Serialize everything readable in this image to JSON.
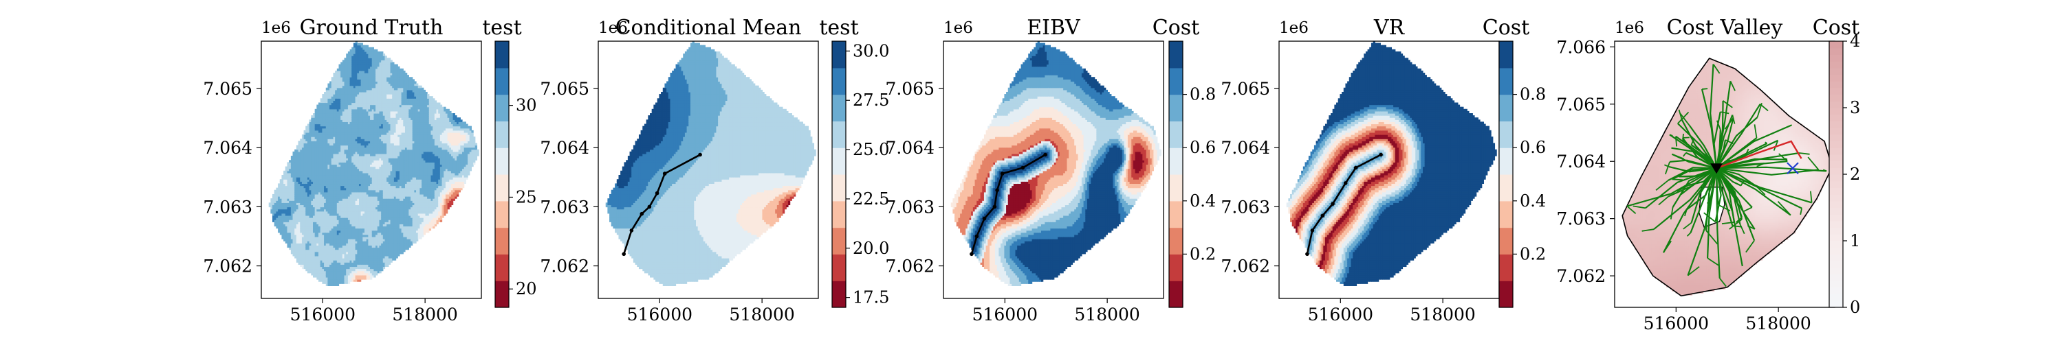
{
  "figure": {
    "colormap": [
      "#67001f",
      "#b2182b",
      "#d6604d",
      "#f4a582",
      "#fddbc7",
      "#f7f7f7",
      "#d1e5f0",
      "#92c5de",
      "#4393c3",
      "#2166ac",
      "#053061"
    ],
    "valley_cmap": [
      "#f4f6fa",
      "#f7ecec",
      "#f1d6d6",
      "#e7bcbc",
      "#d9a0a2"
    ],
    "path_color": "#000000",
    "tree_color": "#118011",
    "best_path_color": "#d62728",
    "target_color": "#1f3fcf",
    "land_color": "#888888"
  },
  "chart_data": [
    {
      "type": "heatmap",
      "title": "Ground Truth",
      "offset_label": "1e6",
      "x_ticks": [
        "516000",
        "518000"
      ],
      "y_ticks": [
        "7.065",
        "7.064",
        "7.063",
        "7.062"
      ],
      "x_range": [
        514800,
        519100
      ],
      "y_range": [
        7061450,
        7065800
      ],
      "colorbar": {
        "label": "test",
        "range": [
          19,
          33.5
        ],
        "ticks": [
          20,
          25,
          30
        ],
        "tick_labels": [
          "20",
          "25",
          "30"
        ],
        "levels": 10
      },
      "field": "salinity_truth",
      "path": []
    },
    {
      "type": "heatmap",
      "title": "Conditional Mean",
      "offset_label": "1e6",
      "x_ticks": [
        "516000",
        "518000"
      ],
      "y_ticks": [
        "7.065",
        "7.064",
        "7.063",
        "7.062"
      ],
      "x_range": [
        514800,
        519100
      ],
      "y_range": [
        7061450,
        7065800
      ],
      "colorbar": {
        "label": "test",
        "range": [
          17,
          30.5
        ],
        "ticks": [
          17.5,
          20,
          22.5,
          25,
          27.5,
          30
        ],
        "tick_labels": [
          "17.5",
          "20.0",
          "22.5",
          "25.0",
          "27.5",
          "30.0"
        ],
        "levels": 10
      },
      "field": "salinity_mean",
      "path": [
        [
          516790,
          7063880
        ],
        [
          516100,
          7063560
        ],
        [
          515950,
          7063230
        ],
        [
          515800,
          7063000
        ],
        [
          515650,
          7062880
        ],
        [
          515450,
          7062600
        ],
        [
          515300,
          7062200
        ]
      ]
    },
    {
      "type": "heatmap",
      "title": "EIBV",
      "offset_label": "1e6",
      "x_ticks": [
        "516000",
        "518000"
      ],
      "y_ticks": [
        "7.065",
        "7.064",
        "7.063",
        "7.062"
      ],
      "x_range": [
        514800,
        519100
      ],
      "y_range": [
        7061450,
        7065800
      ],
      "colorbar": {
        "label": "Cost",
        "range": [
          0,
          1
        ],
        "ticks": [
          0.2,
          0.4,
          0.6,
          0.8
        ],
        "tick_labels": [
          "0.2",
          "0.4",
          "0.6",
          "0.8"
        ],
        "levels": 10
      },
      "field": "cost_eibv",
      "path": [
        [
          516790,
          7063880
        ],
        [
          516350,
          7063660
        ],
        [
          515950,
          7063560
        ],
        [
          515850,
          7063280
        ],
        [
          515800,
          7063000
        ],
        [
          515600,
          7062800
        ],
        [
          515450,
          7062500
        ],
        [
          515350,
          7062200
        ]
      ]
    },
    {
      "type": "heatmap",
      "title": "VR",
      "offset_label": "1e6",
      "x_ticks": [
        "516000",
        "518000"
      ],
      "y_ticks": [
        "7.065",
        "7.064",
        "7.063",
        "7.062"
      ],
      "x_range": [
        514800,
        519100
      ],
      "y_range": [
        7061450,
        7065800
      ],
      "colorbar": {
        "label": "Cost",
        "range": [
          0,
          1
        ],
        "ticks": [
          0.2,
          0.4,
          0.6,
          0.8
        ],
        "tick_labels": [
          "0.2",
          "0.4",
          "0.6",
          "0.8"
        ],
        "levels": 10
      },
      "field": "cost_vr",
      "path": [
        [
          516790,
          7063880
        ],
        [
          516300,
          7063660
        ],
        [
          516100,
          7063400
        ],
        [
          515850,
          7063050
        ],
        [
          515650,
          7062850
        ],
        [
          515450,
          7062600
        ],
        [
          515350,
          7062200
        ]
      ]
    },
    {
      "type": "heatmap",
      "title": "Cost Valley",
      "offset_label": "1e6",
      "x_ticks": [
        "516000",
        "518000"
      ],
      "y_ticks": [
        "7.066",
        "7.065",
        "7.064",
        "7.063",
        "7.062"
      ],
      "x_range": [
        514800,
        519100
      ],
      "y_range": [
        7061450,
        7066100
      ],
      "colorbar": {
        "label": "Cost",
        "range": [
          0,
          4
        ],
        "ticks": [
          0,
          1,
          2,
          3,
          4
        ],
        "tick_labels": [
          "0",
          "1",
          "2",
          "3",
          "4"
        ],
        "levels": 5
      },
      "field": "cost_valley",
      "tree_root": [
        516790,
        7063880
      ],
      "target": [
        518280,
        7063880
      ],
      "path": []
    }
  ]
}
